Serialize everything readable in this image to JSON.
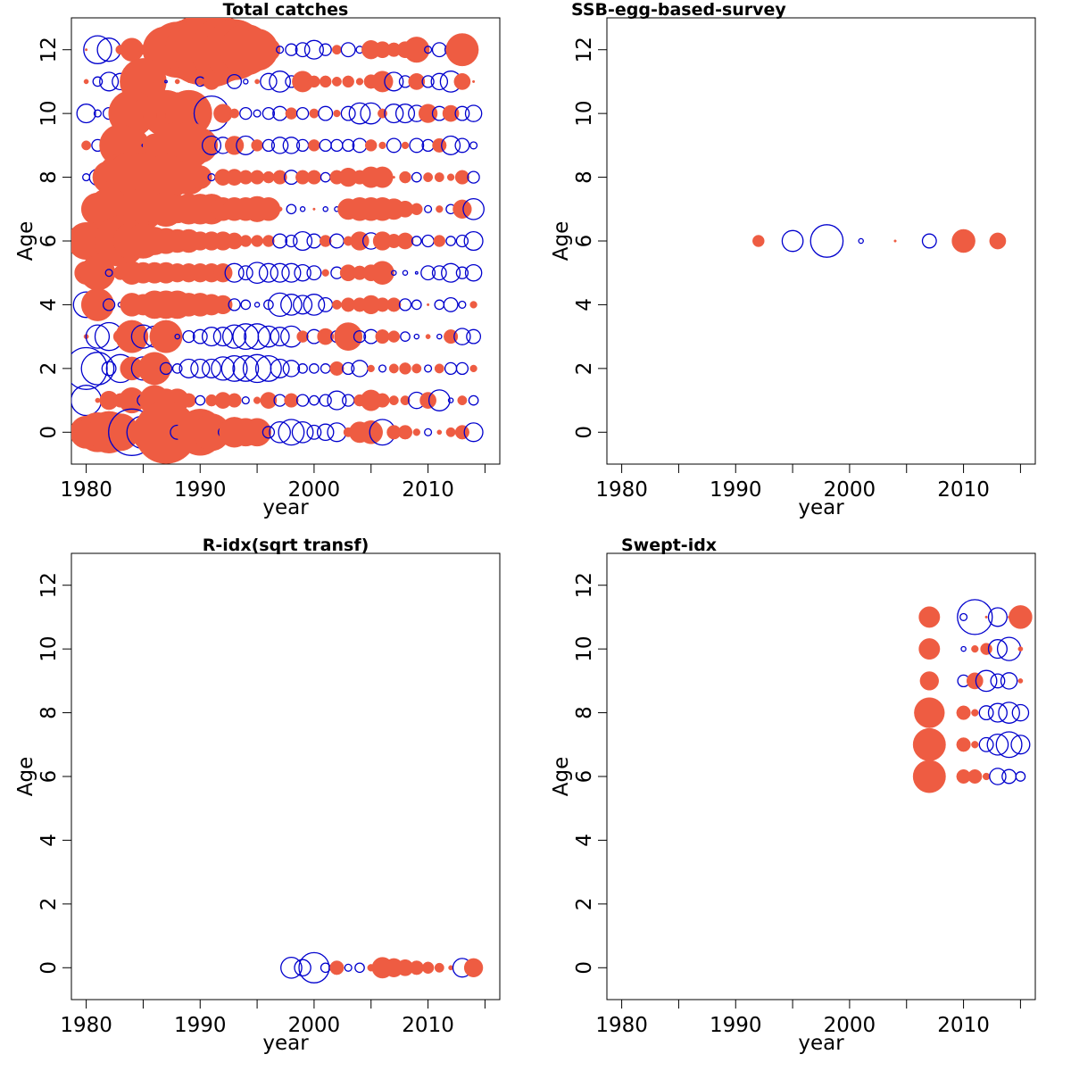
{
  "colors": {
    "positive": "#EE5C42",
    "negative": "#0000CD",
    "axis": "#000000"
  },
  "chart_data": [
    {
      "type": "scatter",
      "title": "Total catches",
      "xlabel": "year",
      "ylabel": "Age",
      "xlim": [
        1978.7,
        2016.3
      ],
      "ylim": [
        -1,
        13
      ],
      "xticks": [
        1980,
        1990,
        2000,
        2010
      ],
      "yticks": [
        0,
        2,
        4,
        6,
        8,
        10,
        12
      ],
      "minor_xticks": [
        1985,
        1995,
        2005,
        2015
      ],
      "grid": false,
      "rows": [
        {
          "age": 12,
          "start_year": 1980,
          "values": [
            0.1,
            -1.2,
            -1.0,
            0.4,
            1.0,
            0.4,
            0.5,
            2.0,
            2.4,
            2.6,
            3.0,
            3.2,
            2.8,
            2.6,
            2.2,
            1.8,
            1.0,
            -0.3,
            -0.5,
            -0.6,
            -0.8,
            -0.5,
            0.4,
            -0.6,
            -0.3,
            0.8,
            0.7,
            0.6,
            0.7,
            1.1,
            -0.3,
            -0.6,
            -0.5,
            1.4
          ]
        },
        {
          "age": 11,
          "start_year": 1980,
          "values": [
            0.2,
            -0.4,
            -0.8,
            -0.7,
            1.0,
            2.0,
            0.1,
            -0.1,
            0.2,
            0.1,
            -0.4,
            0.7,
            0.2,
            -0.6,
            -0.2,
            0.2,
            -0.7,
            -0.9,
            -0.5,
            0.9,
            0.5,
            0.5,
            0.4,
            0.5,
            0.3,
            0.6,
            0.9,
            -0.8,
            -0.5,
            0.7,
            -0.5,
            -0.7,
            -0.9,
            0.7,
            0.1
          ]
        },
        {
          "age": 10,
          "start_year": 1980,
          "values": [
            -0.8,
            -0.3,
            -0.5,
            1.0,
            2.0,
            1.2,
            0.3,
            2.0,
            1.8,
            2.0,
            1.0,
            -1.5,
            0.8,
            0.4,
            -0.5,
            -0.3,
            -0.5,
            -0.6,
            0.5,
            -0.5,
            0.4,
            -0.6,
            0.3,
            -0.6,
            -0.9,
            -0.9,
            0.4,
            -0.8,
            -0.8,
            -0.7,
            0.8,
            -0.6,
            0.7,
            -0.6,
            -0.7
          ]
        },
        {
          "age": 9,
          "start_year": 1980,
          "values": [
            0.4,
            -0.5,
            -0.7,
            1.8,
            1.5,
            -0.1,
            1.0,
            1.4,
            2.0,
            2.0,
            1.5,
            -0.8,
            -0.7,
            0.8,
            -0.8,
            0.5,
            -0.5,
            -0.7,
            -0.7,
            -0.5,
            0.5,
            -0.5,
            -0.5,
            -0.5,
            -0.6,
            0.5,
            0.3,
            -0.6,
            0.3,
            -0.6,
            -0.5,
            0.6,
            -0.8,
            -0.6,
            -0.3
          ]
        },
        {
          "age": 8,
          "start_year": 1980,
          "values": [
            -0.3,
            -0.7,
            1.4,
            2.0,
            2.2,
            2.1,
            2.3,
            2.0,
            1.5,
            1.5,
            1.0,
            -0.3,
            0.7,
            0.7,
            0.6,
            0.6,
            0.5,
            0.6,
            -0.6,
            0.6,
            0.6,
            -0.4,
            0.6,
            0.8,
            0.6,
            0.9,
            0.9,
            0.1,
            0.5,
            -0.4,
            0.4,
            0.4,
            0.3,
            0.6,
            -0.5
          ]
        },
        {
          "age": 7,
          "start_year": 1980,
          "values": [
            -0.3,
            1.4,
            1.8,
            -0.2,
            1.4,
            1.8,
            1.2,
            1.5,
            1.2,
            1.3,
            1.3,
            1.3,
            1.0,
            1.0,
            1.0,
            1.1,
            1.0,
            0.2,
            -0.4,
            -0.2,
            0.1,
            -0.2,
            -0.2,
            0.9,
            1.0,
            1.0,
            1.0,
            0.9,
            0.7,
            0.5,
            -0.3,
            0.3,
            -0.4,
            0.8,
            -0.9
          ]
        },
        {
          "age": 6,
          "start_year": 1980,
          "values": [
            1.6,
            1.4,
            -0.3,
            2.2,
            1.6,
            1.5,
            1.2,
            1.1,
            1.0,
            1.0,
            0.8,
            0.8,
            0.8,
            0.7,
            0.5,
            0.5,
            0.5,
            -0.6,
            -0.5,
            -0.8,
            -0.6,
            0.5,
            -0.6,
            0.4,
            0.8,
            -0.7,
            0.8,
            0.6,
            0.7,
            -0.4,
            -0.5,
            0.5,
            -0.4,
            -0.5,
            -0.8
          ]
        },
        {
          "age": 5,
          "start_year": 1980,
          "values": [
            1.0,
            1.5,
            -0.3,
            0.6,
            1.0,
            0.9,
            0.9,
            0.9,
            0.8,
            0.8,
            0.8,
            0.8,
            0.8,
            -0.8,
            -0.6,
            -0.9,
            -0.8,
            -0.8,
            -0.8,
            -0.7,
            -0.6,
            0.3,
            -0.5,
            0.7,
            0.6,
            0.7,
            1.0,
            -0.2,
            -0.2,
            -0.1,
            -0.6,
            -0.6,
            -0.8,
            -0.5,
            -0.7
          ]
        },
        {
          "age": 4,
          "start_year": 1980,
          "values": [
            -1.1,
            1.4,
            -0.5,
            -0.2,
            1.0,
            0.9,
            1.2,
            1.2,
            1.2,
            1.0,
            1.0,
            0.9,
            0.8,
            -0.5,
            -0.4,
            -0.2,
            -0.4,
            -1.0,
            -0.9,
            -0.8,
            -0.9,
            -0.6,
            0.4,
            0.6,
            0.6,
            0.8,
            0.6,
            0.6,
            -0.5,
            -0.4,
            0.1,
            -0.4,
            -0.6,
            -0.3,
            0.3
          ]
        },
        {
          "age": 3,
          "start_year": 1980,
          "values": [
            0.2,
            -1.0,
            -1.2,
            0.6,
            1.4,
            -1.0,
            -0.9,
            1.4,
            -0.2,
            -0.5,
            -0.6,
            -0.8,
            -0.8,
            -1.0,
            -1.1,
            -1.1,
            -0.9,
            -0.8,
            -0.9,
            0.5,
            -0.6,
            0.7,
            -0.5,
            1.2,
            -0.5,
            -0.6,
            0.6,
            0.5,
            -0.4,
            -0.2,
            0.2,
            -0.2,
            0.6,
            -0.7,
            -0.6
          ]
        },
        {
          "age": 2,
          "start_year": 1980,
          "values": [
            -1.8,
            -1.4,
            -0.6,
            -1.2,
            1.0,
            -1.0,
            1.4,
            -0.5,
            -0.4,
            -0.8,
            -0.8,
            -0.8,
            -1.0,
            -1.1,
            -1.1,
            -1.2,
            -1.1,
            -0.8,
            -0.7,
            -0.4,
            -0.4,
            -0.4,
            0.6,
            -0.5,
            -0.7,
            0.3,
            -0.3,
            0.4,
            0.5,
            0.4,
            -0.3,
            0.4,
            -0.5,
            -0.5,
            0.3
          ]
        },
        {
          "age": 1,
          "start_year": 1980,
          "values": [
            -1.3,
            0.2,
            0.8,
            0.6,
            1.1,
            -0.5,
            1.3,
            1.0,
            1.0,
            0.6,
            -0.4,
            0.5,
            0.7,
            0.6,
            -0.3,
            0.3,
            0.7,
            -0.5,
            0.6,
            -0.5,
            -0.4,
            -0.5,
            -0.8,
            -0.5,
            0.5,
            0.9,
            0.6,
            0.4,
            0.4,
            -0.7,
            0.7,
            -0.9,
            -0.2,
            0.4,
            -0.4
          ]
        },
        {
          "age": 0,
          "start_year": 1980,
          "values": [
            1.4,
            1.7,
            1.8,
            1.6,
            -2.0,
            -1.4,
            1.9,
            2.7,
            -0.6,
            -0.8,
            2.0,
            1.6,
            -0.4,
            1.3,
            1.2,
            1.2,
            -0.5,
            -0.9,
            -1.1,
            -0.9,
            -0.6,
            -0.7,
            -0.8,
            0.4,
            0.9,
            1.0,
            -1.1,
            0.6,
            0.6,
            0.3,
            -0.3,
            0.2,
            0.4,
            0.6,
            -0.8
          ]
        }
      ]
    },
    {
      "type": "scatter",
      "title": "SSB-egg-based-survey",
      "xlabel": "year",
      "ylabel": "Age",
      "xlim": [
        1978.7,
        2016.3
      ],
      "ylim": [
        -1,
        13
      ],
      "xticks": [
        1980,
        1990,
        2000,
        2010
      ],
      "yticks": [
        0,
        2,
        4,
        6,
        8,
        10,
        12
      ],
      "minor_xticks": [
        1985,
        1995,
        2005,
        2015
      ],
      "grid": false,
      "points": [
        {
          "year": 1992,
          "age": 6,
          "value": 0.5
        },
        {
          "year": 1995,
          "age": 6,
          "value": -0.9
        },
        {
          "year": 1998,
          "age": 6,
          "value": -1.4
        },
        {
          "year": 2001,
          "age": 6,
          "value": -0.2
        },
        {
          "year": 2004,
          "age": 6,
          "value": 0.1
        },
        {
          "year": 2007,
          "age": 6,
          "value": -0.6
        },
        {
          "year": 2010,
          "age": 6,
          "value": 1.0
        },
        {
          "year": 2013,
          "age": 6,
          "value": 0.7
        }
      ]
    },
    {
      "type": "scatter",
      "title": "R-idx(sqrt transf)",
      "xlabel": "year",
      "ylabel": "Age",
      "xlim": [
        1978.7,
        2016.3
      ],
      "ylim": [
        -1,
        13
      ],
      "xticks": [
        1980,
        1990,
        2000,
        2010
      ],
      "yticks": [
        0,
        2,
        4,
        6,
        8,
        10,
        12
      ],
      "minor_xticks": [
        1985,
        1995,
        2005,
        2015
      ],
      "grid": false,
      "points": [
        {
          "year": 1998,
          "age": 0,
          "value": -0.9
        },
        {
          "year": 1999,
          "age": 0,
          "value": -0.7
        },
        {
          "year": 2000,
          "age": 0,
          "value": -1.3
        },
        {
          "year": 2001,
          "age": 0,
          "value": -0.4
        },
        {
          "year": 2002,
          "age": 0,
          "value": 0.6
        },
        {
          "year": 2003,
          "age": 0,
          "value": -0.3
        },
        {
          "year": 2004,
          "age": 0,
          "value": -0.4
        },
        {
          "year": 2005,
          "age": 0,
          "value": 0.3
        },
        {
          "year": 2006,
          "age": 0,
          "value": 0.9
        },
        {
          "year": 2007,
          "age": 0,
          "value": 0.8
        },
        {
          "year": 2008,
          "age": 0,
          "value": 0.7
        },
        {
          "year": 2009,
          "age": 0,
          "value": 0.6
        },
        {
          "year": 2010,
          "age": 0,
          "value": 0.5
        },
        {
          "year": 2011,
          "age": 0,
          "value": 0.4
        },
        {
          "year": 2012,
          "age": 0,
          "value": 0.2
        },
        {
          "year": 2013,
          "age": 0,
          "value": -0.8
        },
        {
          "year": 2014,
          "age": 0,
          "value": 0.8
        }
      ]
    },
    {
      "type": "scatter",
      "title": "Swept-idx",
      "xlabel": "year",
      "ylabel": "Age",
      "xlim": [
        1978.7,
        2016.3
      ],
      "ylim": [
        -1,
        13
      ],
      "xticks": [
        1980,
        1990,
        2000,
        2010
      ],
      "yticks": [
        0,
        2,
        4,
        6,
        8,
        10,
        12
      ],
      "minor_xticks": [
        1985,
        1995,
        2005,
        2015
      ],
      "grid": false,
      "points": [
        {
          "year": 2007,
          "age": 11,
          "value": 0.9
        },
        {
          "year": 2010,
          "age": 11,
          "value": -0.3
        },
        {
          "year": 2011,
          "age": 11,
          "value": -1.5
        },
        {
          "year": 2012,
          "age": 11,
          "value": 0.1
        },
        {
          "year": 2013,
          "age": 11,
          "value": -0.8
        },
        {
          "year": 2014,
          "age": 11,
          "value": 0.1
        },
        {
          "year": 2015,
          "age": 11,
          "value": 1.0
        },
        {
          "year": 2007,
          "age": 10,
          "value": 0.9
        },
        {
          "year": 2010,
          "age": 10,
          "value": -0.2
        },
        {
          "year": 2011,
          "age": 10,
          "value": 0.3
        },
        {
          "year": 2012,
          "age": 10,
          "value": 0.5
        },
        {
          "year": 2013,
          "age": 10,
          "value": -0.8
        },
        {
          "year": 2014,
          "age": 10,
          "value": -1.0
        },
        {
          "year": 2015,
          "age": 10,
          "value": 0.2
        },
        {
          "year": 2007,
          "age": 9,
          "value": 0.8
        },
        {
          "year": 2010,
          "age": 9,
          "value": -0.5
        },
        {
          "year": 2011,
          "age": 9,
          "value": 0.7
        },
        {
          "year": 2012,
          "age": 9,
          "value": -0.9
        },
        {
          "year": 2013,
          "age": 9,
          "value": -0.6
        },
        {
          "year": 2014,
          "age": 9,
          "value": -0.7
        },
        {
          "year": 2015,
          "age": 9,
          "value": 0.2
        },
        {
          "year": 2007,
          "age": 8,
          "value": 1.3
        },
        {
          "year": 2010,
          "age": 8,
          "value": 0.6
        },
        {
          "year": 2011,
          "age": 8,
          "value": 0.3
        },
        {
          "year": 2012,
          "age": 8,
          "value": -0.6
        },
        {
          "year": 2013,
          "age": 8,
          "value": -0.8
        },
        {
          "year": 2014,
          "age": 8,
          "value": -0.9
        },
        {
          "year": 2015,
          "age": 8,
          "value": -0.7
        },
        {
          "year": 2007,
          "age": 7,
          "value": 1.4
        },
        {
          "year": 2010,
          "age": 7,
          "value": 0.6
        },
        {
          "year": 2011,
          "age": 7,
          "value": 0.3
        },
        {
          "year": 2012,
          "age": 7,
          "value": -0.6
        },
        {
          "year": 2013,
          "age": 7,
          "value": -0.9
        },
        {
          "year": 2014,
          "age": 7,
          "value": -1.1
        },
        {
          "year": 2015,
          "age": 7,
          "value": -0.8
        },
        {
          "year": 2007,
          "age": 6,
          "value": 1.4
        },
        {
          "year": 2010,
          "age": 6,
          "value": 0.6
        },
        {
          "year": 2011,
          "age": 6,
          "value": 0.6
        },
        {
          "year": 2012,
          "age": 6,
          "value": 0.3
        },
        {
          "year": 2013,
          "age": 6,
          "value": -0.7
        },
        {
          "year": 2014,
          "age": 6,
          "value": -0.6
        },
        {
          "year": 2015,
          "age": 6,
          "value": -0.4
        }
      ]
    }
  ]
}
